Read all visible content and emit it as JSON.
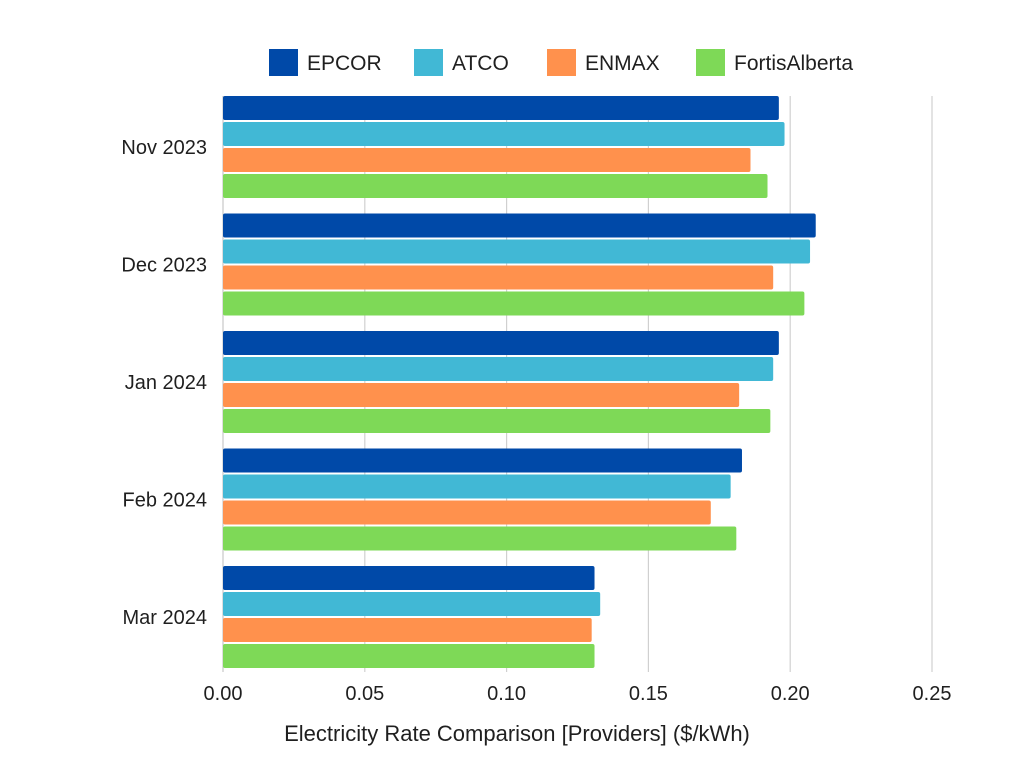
{
  "chart_data": {
    "type": "bar",
    "orientation": "horizontal",
    "categories": [
      "Nov 2023",
      "Dec 2023",
      "Jan 2024",
      "Feb 2024",
      "Mar 2024"
    ],
    "series": [
      {
        "name": "EPCOR",
        "color": "#0049a8",
        "values": [
          0.196,
          0.209,
          0.196,
          0.183,
          0.131
        ]
      },
      {
        "name": "ATCO",
        "color": "#41b8d5",
        "values": [
          0.198,
          0.207,
          0.194,
          0.179,
          0.133
        ]
      },
      {
        "name": "ENMAX",
        "color": "#ff914d",
        "values": [
          0.186,
          0.194,
          0.182,
          0.172,
          0.13
        ]
      },
      {
        "name": "FortisAlberta",
        "color": "#7ed957",
        "values": [
          0.192,
          0.205,
          0.193,
          0.181,
          0.131
        ]
      }
    ],
    "xlabel": "Electricity Rate Comparison [Providers] ($/kWh)",
    "ylabel": "",
    "xlim": [
      0,
      0.25
    ],
    "x_ticks": [
      "0.00",
      "0.05",
      "0.10",
      "0.15",
      "0.20",
      "0.25"
    ],
    "grid": "vertical",
    "legend_position": "top"
  }
}
